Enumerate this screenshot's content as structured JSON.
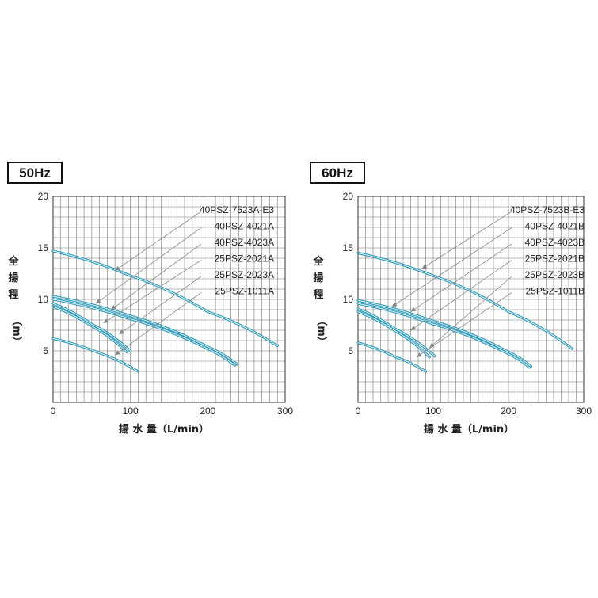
{
  "charts": [
    {
      "badge": "50Hz",
      "ylabel_chars": [
        "全",
        "揚",
        "程"
      ],
      "yunit": "（m）",
      "xlabel": "揚 水 量（L/min）"
    },
    {
      "badge": "60Hz",
      "ylabel_chars": [
        "全",
        "揚",
        "程"
      ],
      "yunit": "（m）",
      "xlabel": "揚 水 量（L/min）"
    }
  ],
  "colors": {
    "curve": "#2e9ab8",
    "grid": "#777777",
    "leader": "#888888"
  },
  "chart_data": [
    {
      "type": "line",
      "title": "50Hz",
      "xlabel": "揚 水 量（L/min）",
      "ylabel": "全揚程（m）",
      "xlim": [
        0,
        300
      ],
      "ylim": [
        0,
        20
      ],
      "xticks": [
        0,
        100,
        200,
        300
      ],
      "yticks": [
        5,
        10,
        15,
        20
      ],
      "grid": true,
      "series": [
        {
          "name": "40PSZ-7523A-E3",
          "x": [
            0,
            100,
            200,
            290
          ],
          "y": [
            14.7,
            12.3,
            8.8,
            5.5
          ],
          "label_anchor": [
            80,
            12.8
          ]
        },
        {
          "name": "40PSZ-4021A",
          "x": [
            0,
            100,
            200,
            238
          ],
          "y": [
            10.3,
            8.4,
            5.4,
            3.7
          ],
          "label_anchor": [
            55,
            9.6
          ]
        },
        {
          "name": "40PSZ-4023A",
          "x": [
            0,
            100,
            200,
            235
          ],
          "y": [
            10.0,
            8.1,
            5.2,
            3.6
          ],
          "label_anchor": [
            75,
            9.0
          ]
        },
        {
          "name": "25PSZ-2021A",
          "x": [
            0,
            50,
            100
          ],
          "y": [
            9.6,
            7.6,
            5.0
          ],
          "label_anchor": [
            65,
            7.7
          ]
        },
        {
          "name": "25PSZ-2023A",
          "x": [
            0,
            50,
            95
          ],
          "y": [
            9.3,
            7.4,
            4.9
          ],
          "label_anchor": [
            85,
            6.6
          ]
        },
        {
          "name": "25PSZ-1011A",
          "x": [
            0,
            60,
            110
          ],
          "y": [
            6.2,
            4.8,
            3.0
          ],
          "label_anchor": [
            80,
            4.6
          ]
        }
      ]
    },
    {
      "type": "line",
      "title": "60Hz",
      "xlabel": "揚 水 量（L/min）",
      "ylabel": "全揚程（m）",
      "xlim": [
        0,
        300
      ],
      "ylim": [
        0,
        20
      ],
      "xticks": [
        0,
        100,
        200,
        300
      ],
      "yticks": [
        5,
        10,
        15,
        20
      ],
      "grid": true,
      "series": [
        {
          "name": "40PSZ-7523B-E3",
          "x": [
            0,
            100,
            200,
            285
          ],
          "y": [
            14.5,
            12.3,
            8.8,
            5.2
          ],
          "label_anchor": [
            85,
            13.0
          ]
        },
        {
          "name": "40PSZ-4021B",
          "x": [
            0,
            100,
            200,
            230
          ],
          "y": [
            9.9,
            7.9,
            4.9,
            3.5
          ],
          "label_anchor": [
            45,
            9.3
          ]
        },
        {
          "name": "40PSZ-4023B",
          "x": [
            0,
            100,
            200,
            228
          ],
          "y": [
            9.6,
            7.6,
            4.7,
            3.4
          ],
          "label_anchor": [
            70,
            8.8
          ]
        },
        {
          "name": "25PSZ-2021B",
          "x": [
            0,
            50,
            102
          ],
          "y": [
            9.1,
            7.1,
            4.5
          ],
          "label_anchor": [
            70,
            7.0
          ]
        },
        {
          "name": "25PSZ-2023B",
          "x": [
            0,
            50,
            95
          ],
          "y": [
            8.8,
            6.9,
            4.4
          ],
          "label_anchor": [
            95,
            5.3
          ]
        },
        {
          "name": "25PSZ-1011B",
          "x": [
            0,
            50,
            90
          ],
          "y": [
            5.8,
            4.4,
            3.0
          ],
          "label_anchor": [
            78,
            4.4
          ]
        }
      ]
    }
  ]
}
